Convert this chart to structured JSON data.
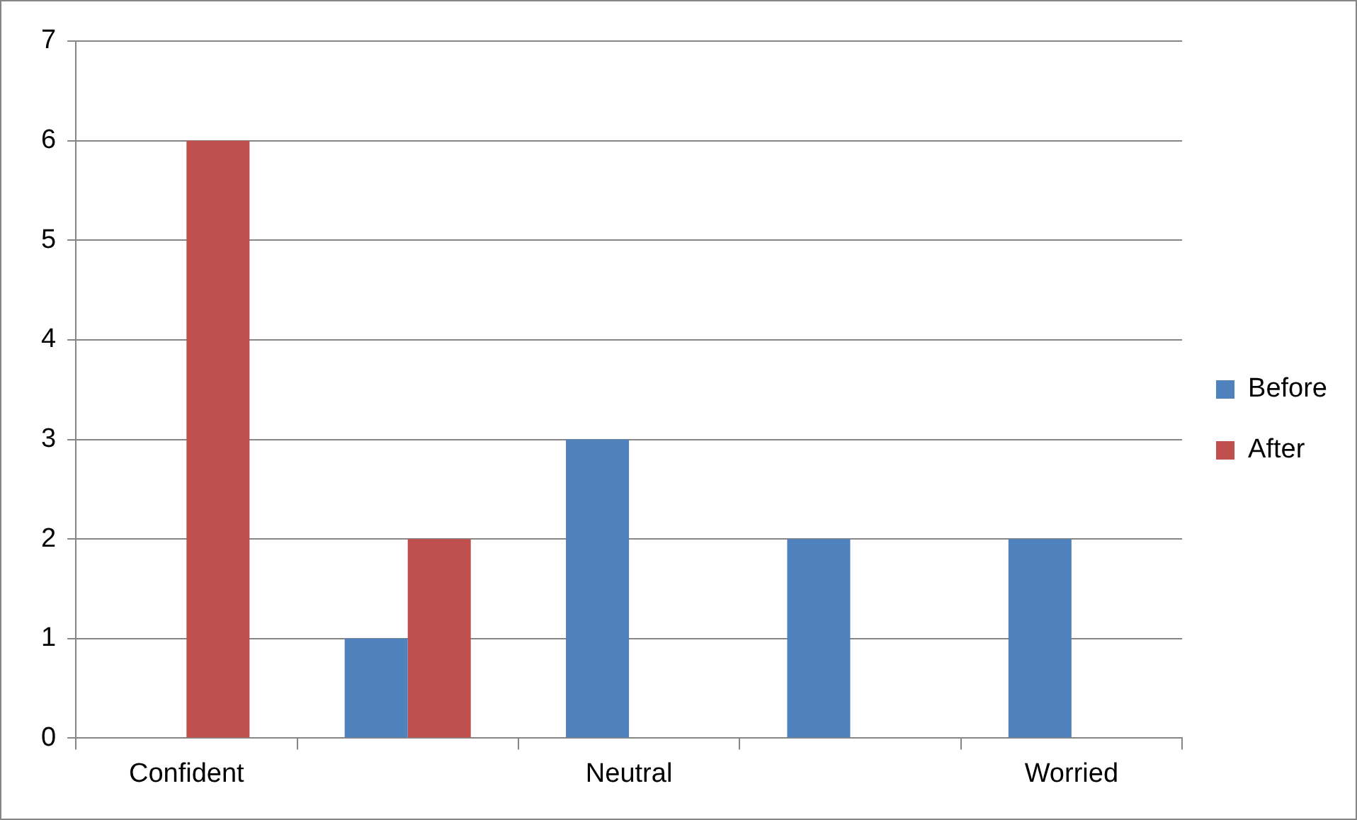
{
  "chart_data": {
    "type": "bar",
    "categories": [
      "Confident",
      null,
      "Neutral",
      null,
      "Worried"
    ],
    "series": [
      {
        "name": "Before",
        "color": "#4f81bd",
        "values": [
          0,
          1,
          3,
          2,
          2
        ]
      },
      {
        "name": "After",
        "color": "#c0504d",
        "values": [
          6,
          2,
          0,
          0,
          0
        ]
      }
    ],
    "ylim": [
      0,
      7
    ],
    "yticks": [
      0,
      1,
      2,
      3,
      4,
      5,
      6,
      7
    ],
    "grid": "y",
    "legend": "right"
  }
}
